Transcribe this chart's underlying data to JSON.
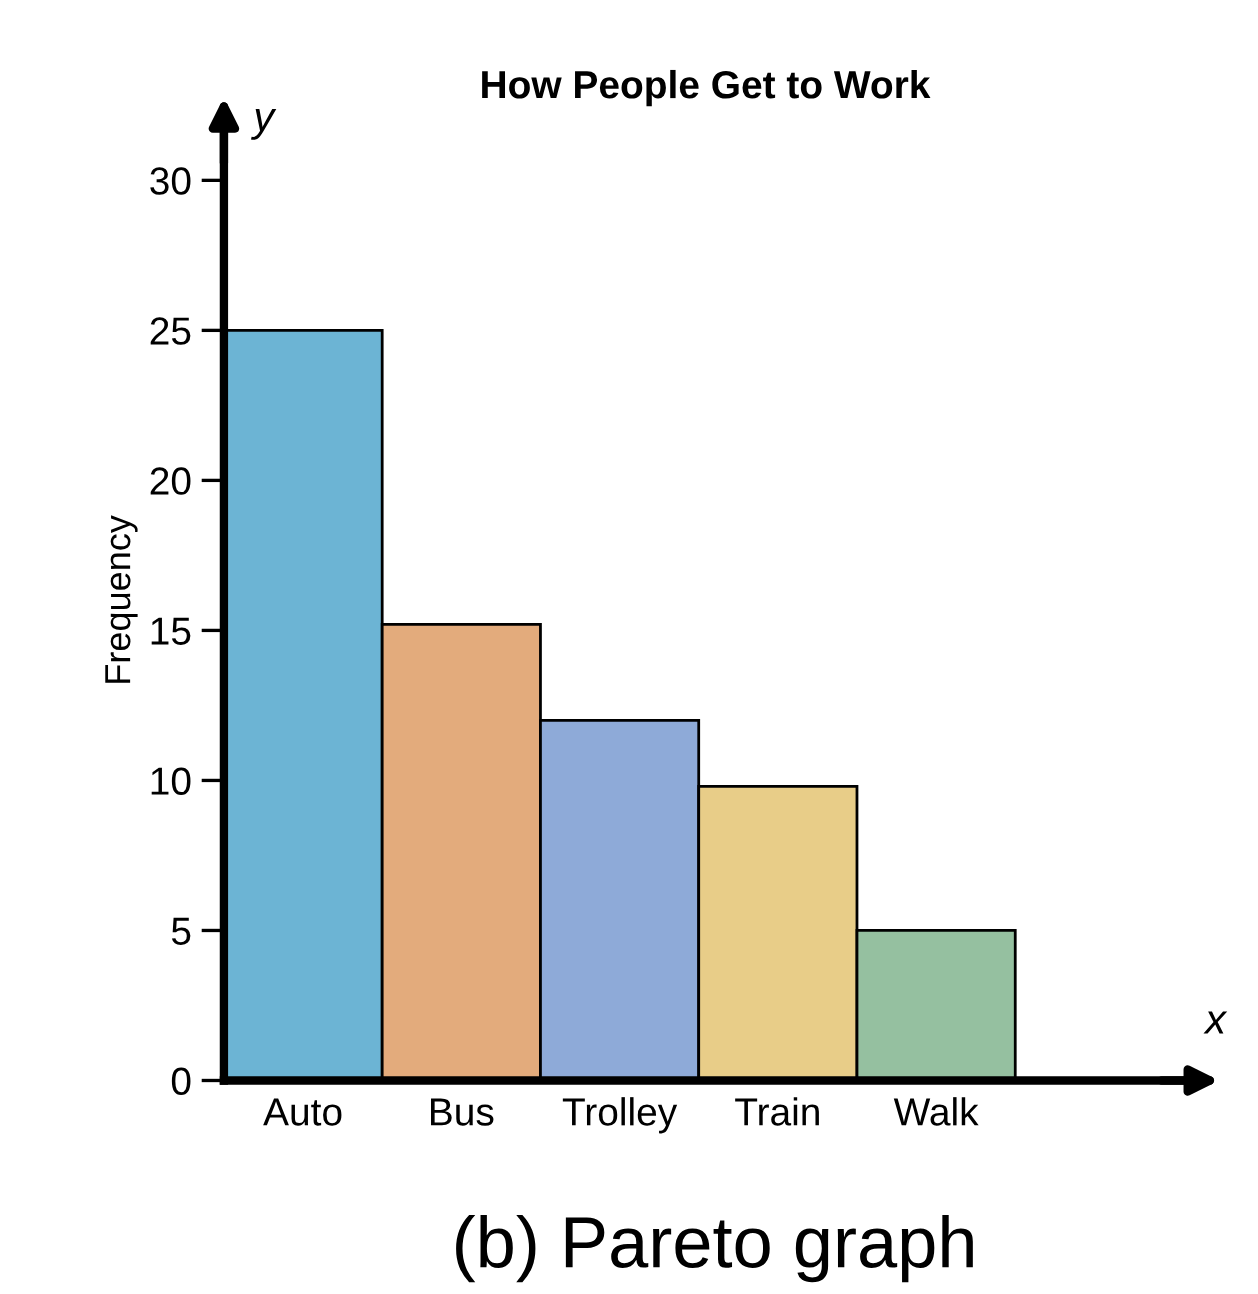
{
  "chart_data": {
    "type": "bar",
    "title": "How People Get to Work",
    "ylabel": "Frequency",
    "categories": [
      "Auto",
      "Bus",
      "Trolley",
      "Train",
      "Walk"
    ],
    "values": [
      25,
      15.2,
      12,
      9.8,
      5
    ],
    "colors": [
      "#6cb4d4",
      "#e3ab7c",
      "#8eaad8",
      "#e8cd88",
      "#95c0a0"
    ],
    "ylim": [
      0,
      32
    ],
    "yticks": [
      0,
      5,
      10,
      15,
      20,
      25,
      30
    ],
    "grid": false,
    "legend": false,
    "annotations": [
      "y",
      "x",
      "(b) Pareto graph"
    ]
  }
}
